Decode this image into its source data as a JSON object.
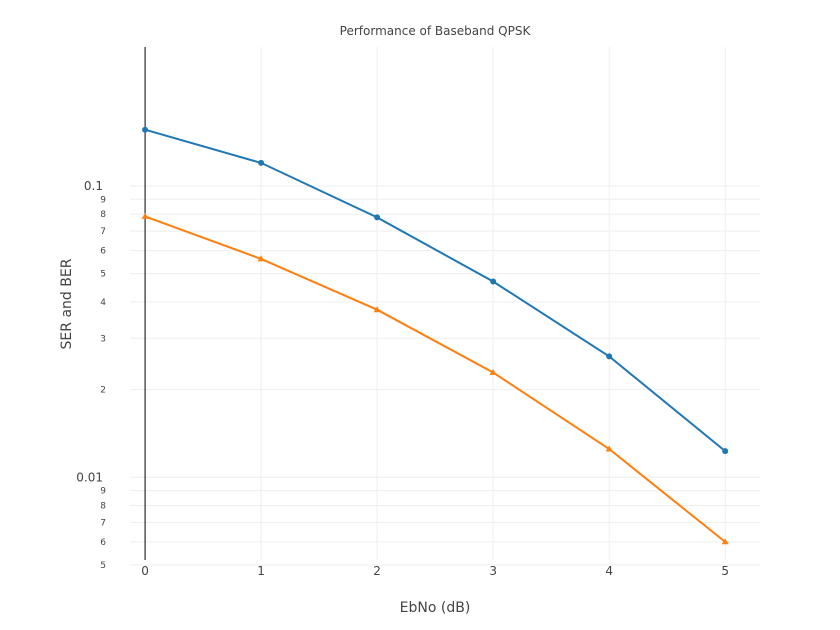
{
  "chart_data": {
    "type": "line",
    "title": "Performance of Baseband QPSK",
    "xlabel": "EbNo (dB)",
    "ylabel": "SER and BER",
    "x": [
      0,
      1,
      2,
      3,
      4,
      5
    ],
    "xlim": [
      -0.13,
      5.3
    ],
    "ylim": [
      0.0052,
      0.3
    ],
    "yscale": "log",
    "grid": true,
    "legend": "none",
    "x_ticks": [
      "0",
      "1",
      "2",
      "3",
      "4",
      "5"
    ],
    "y_major_ticks": [
      {
        "value": 0.1,
        "label": "0.1"
      },
      {
        "value": 0.01,
        "label": "0.01"
      }
    ],
    "y_minor_ticks": [
      {
        "value": 0.09,
        "label": "9"
      },
      {
        "value": 0.08,
        "label": "8"
      },
      {
        "value": 0.07,
        "label": "7"
      },
      {
        "value": 0.06,
        "label": "6"
      },
      {
        "value": 0.05,
        "label": "5"
      },
      {
        "value": 0.04,
        "label": "4"
      },
      {
        "value": 0.03,
        "label": "3"
      },
      {
        "value": 0.02,
        "label": "2"
      },
      {
        "value": 0.009,
        "label": "9"
      },
      {
        "value": 0.008,
        "label": "8"
      },
      {
        "value": 0.007,
        "label": "7"
      },
      {
        "value": 0.006,
        "label": "6"
      },
      {
        "value": 0.005,
        "label": "5"
      }
    ],
    "series": [
      {
        "values": [
          0.156,
          0.12,
          0.078,
          0.047,
          0.026,
          0.0123
        ],
        "color": "#1f77b4",
        "marker": "circle"
      },
      {
        "values": [
          0.0786,
          0.0562,
          0.0376,
          0.0229,
          0.0125,
          0.006
        ],
        "color": "#ff7f0e",
        "marker": "triangle-up"
      }
    ]
  }
}
